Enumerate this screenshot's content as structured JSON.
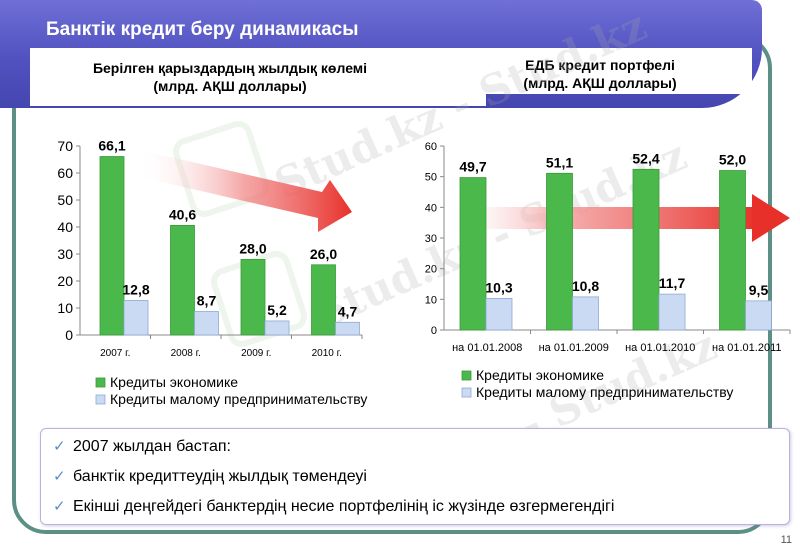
{
  "header": {
    "title": "Банктік кредит беру динамикасы"
  },
  "left_chart": {
    "subtitle_line1": "Берілген қарыздардың жылдық көлемі",
    "subtitle_line2": "(млрд. АҚШ доллары)"
  },
  "right_chart": {
    "subtitle_line1": "ЕДБ кредит портфелі",
    "subtitle_line2": "(млрд. АҚШ доллары)"
  },
  "chart_data": [
    {
      "type": "bar",
      "title": "Берілген қарыздардың жылдық көлемі (млрд. АҚШ доллары)",
      "categories": [
        "2007 г.",
        "2008 г.",
        "2009 г.",
        "2010 г."
      ],
      "series": [
        {
          "name": "Кредиты экономике",
          "values": [
            66.1,
            40.6,
            28.0,
            26.0
          ],
          "labels": [
            "66,1",
            "40,6",
            "28,0",
            "26,0"
          ],
          "color": "#4ab84a"
        },
        {
          "name": "Кредиты малому предпринимательству",
          "values": [
            12.8,
            8.7,
            5.2,
            4.7
          ],
          "labels": [
            "12,8",
            "8,7",
            "5,2",
            "4,7"
          ],
          "color": "#c9daf2"
        }
      ],
      "ylim": [
        0,
        70
      ],
      "yticks": [
        0,
        10,
        20,
        30,
        40,
        50,
        60,
        70
      ],
      "legend": "bottom",
      "grid": false
    },
    {
      "type": "bar",
      "title": "ЕДБ кредит портфелі (млрд. АҚШ доллары)",
      "categories": [
        "на 01.01.2008",
        "на 01.01.2009",
        "на 01.01.2010",
        "на 01.01.2011"
      ],
      "series": [
        {
          "name": "Кредиты экономике",
          "values": [
            49.7,
            51.1,
            52.4,
            52.0
          ],
          "labels": [
            "49,7",
            "51,1",
            "52,4",
            "52,0"
          ],
          "color": "#4ab84a"
        },
        {
          "name": "Кредиты малому предпринимательству",
          "values": [
            10.3,
            10.8,
            11.7,
            9.5
          ],
          "labels": [
            "10,3",
            "10,8",
            "11,7",
            "9,5"
          ],
          "color": "#c9daf2"
        }
      ],
      "ylim": [
        0,
        60
      ],
      "yticks": [
        0,
        10,
        20,
        30,
        40,
        50,
        60
      ],
      "legend": "bottom",
      "grid": false
    }
  ],
  "bullets": [
    "2007 жылдан бастап:",
    "банктік кредиттеудің жылдық төмендеуі",
    "Екінші деңгейдегі банктердің несие портфелінің іс жүзінде өзгермегендігі"
  ],
  "watermark_text": "Stud.kz - Stud.kz",
  "page_number": "11",
  "colors": {
    "header": "#5151c0",
    "frame": "#5c8f86",
    "arrow": "#e8302a",
    "bar_green": "#4ab84a",
    "bar_blue": "#c9daf2"
  }
}
